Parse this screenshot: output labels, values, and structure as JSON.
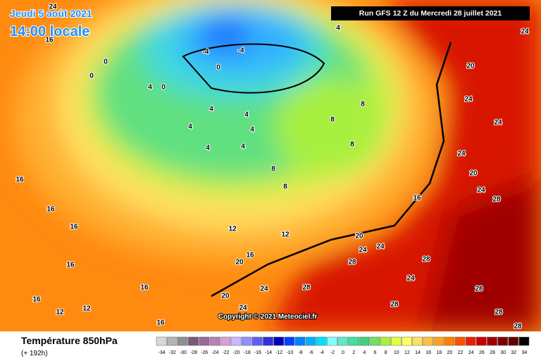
{
  "header": {
    "date": "Jeudi 5 août 2021",
    "time": "14:00 locale",
    "run": "Run GFS 12 Z du Mercredi 28 juillet 2021"
  },
  "copyright": "Copyright © 2021 Meteociel.fr",
  "footer": {
    "title": "Température 850hPa",
    "lead": "(+ 192h)"
  },
  "scale": {
    "labels": [
      -34,
      -32,
      -30,
      -28,
      -26,
      -24,
      -22,
      -20,
      -18,
      -16,
      -14,
      -12,
      -10,
      -8,
      -6,
      -4,
      -2,
      0,
      2,
      4,
      6,
      8,
      10,
      12,
      14,
      16,
      18,
      20,
      22,
      24,
      26,
      28,
      30,
      32,
      34
    ],
    "colors": [
      "#d8d8d8",
      "#b4b4b4",
      "#909090",
      "#7a5a7a",
      "#9a6a9a",
      "#b880b8",
      "#d8a0d8",
      "#c8b8ff",
      "#9090ff",
      "#6060f0",
      "#3030d8",
      "#0000b8",
      "#0040ff",
      "#0080ff",
      "#00b0ff",
      "#00e0ff",
      "#80ffff",
      "#60e8c8",
      "#40e0a0",
      "#40d080",
      "#70e060",
      "#a8f040",
      "#e0ff40",
      "#ffff60",
      "#ffe060",
      "#ffc040",
      "#ffa020",
      "#ff8000",
      "#ff5000",
      "#e82000",
      "#c80000",
      "#a00000",
      "#800000",
      "#600000",
      "#000000"
    ]
  },
  "map_labels": [
    24,
    16,
    0,
    0,
    4,
    0,
    4,
    4,
    4,
    4,
    4,
    4,
    -4,
    -4,
    0,
    4,
    8,
    8,
    8,
    8,
    8,
    16,
    16,
    16,
    16,
    16,
    16,
    12,
    12,
    12,
    16,
    20,
    20,
    24,
    24,
    28,
    24,
    28,
    20,
    24,
    16,
    24,
    20,
    24,
    24,
    20,
    24,
    28,
    24,
    28,
    28,
    24,
    28,
    28,
    28,
    16,
    12
  ]
}
